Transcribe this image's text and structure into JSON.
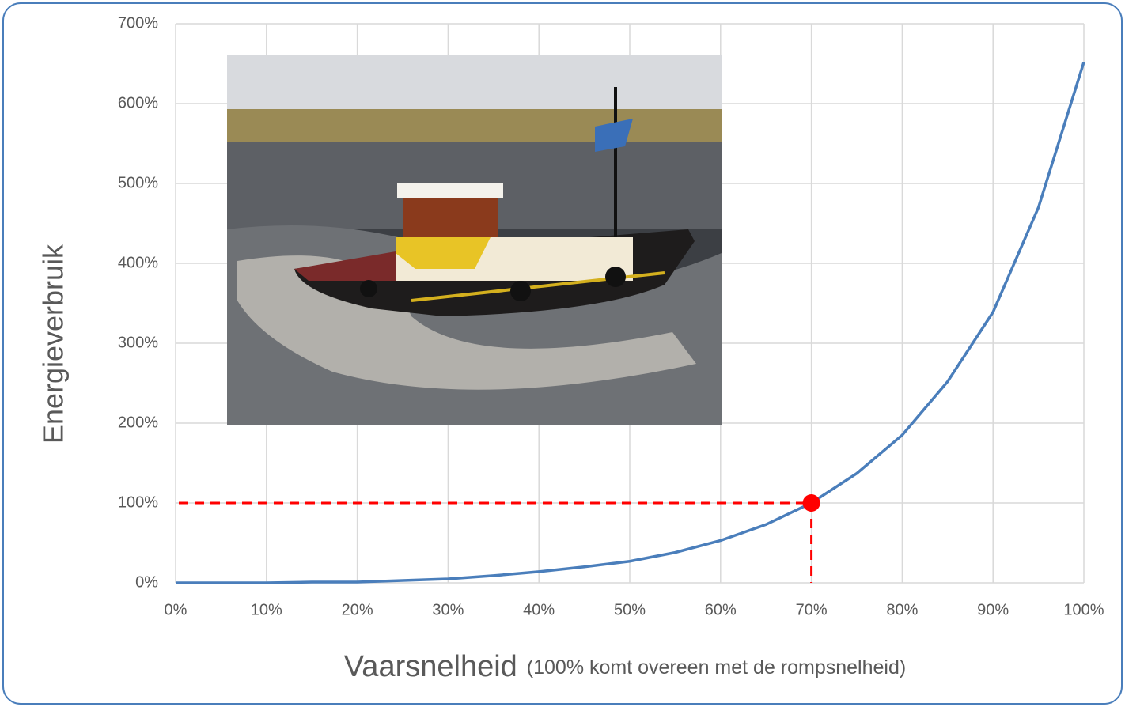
{
  "chart_data": {
    "type": "line",
    "y_label": "Energieverbruik",
    "x_label": "Vaarsnelheid",
    "x_label_note": "(100% komt overeen met de rompsnelheid)",
    "x": [
      0,
      5,
      10,
      15,
      20,
      25,
      30,
      35,
      40,
      45,
      50,
      55,
      60,
      65,
      70,
      75,
      80,
      85,
      90,
      95,
      100
    ],
    "series": [
      {
        "color": "#4a7ebb",
        "values": [
          0,
          0,
          0,
          1,
          1,
          3,
          5,
          9,
          14,
          20,
          27,
          38,
          53,
          73,
          100,
          137,
          185,
          252,
          339,
          470,
          652
        ]
      }
    ],
    "highlight": {
      "x": 70,
      "y": 100,
      "color": "#ff0000"
    },
    "xlim": [
      0,
      100
    ],
    "ylim": [
      0,
      700
    ],
    "xticks": [
      {
        "value": 0,
        "label": "0%"
      },
      {
        "value": 10,
        "label": "10%"
      },
      {
        "value": 20,
        "label": "20%"
      },
      {
        "value": 30,
        "label": "30%"
      },
      {
        "value": 40,
        "label": "40%"
      },
      {
        "value": 50,
        "label": "50%"
      },
      {
        "value": 60,
        "label": "60%"
      },
      {
        "value": 70,
        "label": "70%"
      },
      {
        "value": 80,
        "label": "80%"
      },
      {
        "value": 90,
        "label": "90%"
      },
      {
        "value": 100,
        "label": "100%"
      }
    ],
    "yticks": [
      {
        "value": 0,
        "label": "0%"
      },
      {
        "value": 100,
        "label": "100%"
      },
      {
        "value": 200,
        "label": "200%"
      },
      {
        "value": 300,
        "label": "300%"
      },
      {
        "value": 400,
        "label": "400%"
      },
      {
        "value": 500,
        "label": "500%"
      },
      {
        "value": 600,
        "label": "600%"
      },
      {
        "value": 700,
        "label": "700%"
      }
    ],
    "grid": true
  }
}
